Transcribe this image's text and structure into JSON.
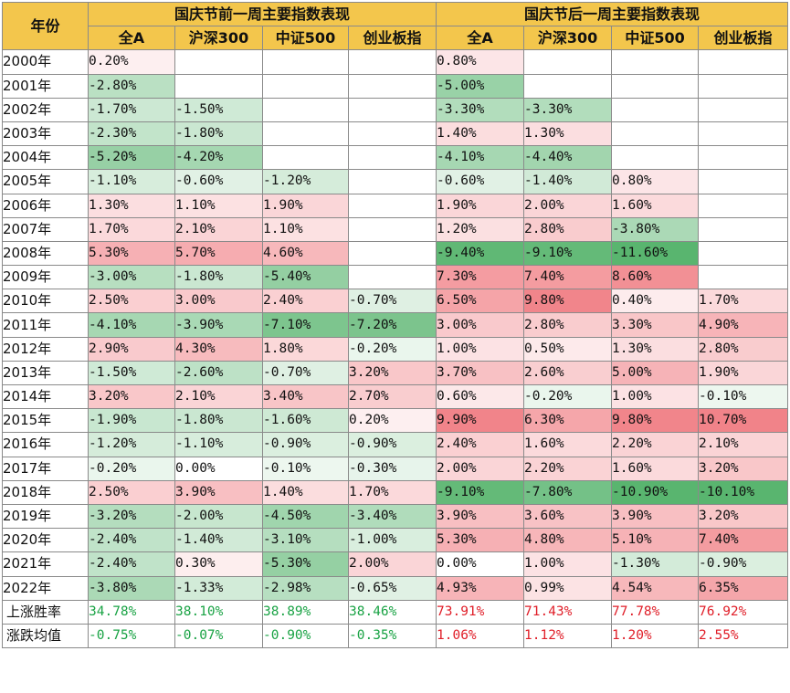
{
  "headers": {
    "year": "年份",
    "before_group": "国庆节前一周主要指数表现",
    "after_group": "国庆节后一周主要指数表现",
    "indices": [
      "全A",
      "沪深300",
      "中证500",
      "创业板指"
    ]
  },
  "colors": {
    "header_bg": "#f3c64c",
    "grid_border": "#8a8a8a",
    "positive_fill": "#f07a80",
    "negative_fill": "#4caf64",
    "summary_green_text": "#1aa345",
    "summary_red_text": "#e01e28"
  },
  "rows": [
    {
      "year": "2000年",
      "before": [
        "0.20%",
        "",
        "",
        ""
      ],
      "after": [
        "0.80%",
        "",
        "",
        ""
      ]
    },
    {
      "year": "2001年",
      "before": [
        "-2.80%",
        "",
        "",
        ""
      ],
      "after": [
        "-5.00%",
        "",
        "",
        ""
      ]
    },
    {
      "year": "2002年",
      "before": [
        "-1.70%",
        "-1.50%",
        "",
        ""
      ],
      "after": [
        "-3.30%",
        "-3.30%",
        "",
        ""
      ]
    },
    {
      "year": "2003年",
      "before": [
        "-2.30%",
        "-1.80%",
        "",
        ""
      ],
      "after": [
        "1.40%",
        "1.30%",
        "",
        ""
      ]
    },
    {
      "year": "2004年",
      "before": [
        "-5.20%",
        "-4.20%",
        "",
        ""
      ],
      "after": [
        "-4.10%",
        "-4.40%",
        "",
        ""
      ]
    },
    {
      "year": "2005年",
      "before": [
        "-1.10%",
        "-0.60%",
        "-1.20%",
        ""
      ],
      "after": [
        "-0.60%",
        "-1.40%",
        "0.80%",
        ""
      ]
    },
    {
      "year": "2006年",
      "before": [
        "1.30%",
        "1.10%",
        "1.90%",
        ""
      ],
      "after": [
        "1.90%",
        "2.00%",
        "1.60%",
        ""
      ]
    },
    {
      "year": "2007年",
      "before": [
        "1.70%",
        "2.10%",
        "1.10%",
        ""
      ],
      "after": [
        "1.20%",
        "2.80%",
        "-3.80%",
        ""
      ]
    },
    {
      "year": "2008年",
      "before": [
        "5.30%",
        "5.70%",
        "4.60%",
        ""
      ],
      "after": [
        "-9.40%",
        "-9.10%",
        "-11.60%",
        ""
      ]
    },
    {
      "year": "2009年",
      "before": [
        "-3.00%",
        "-1.80%",
        "-5.40%",
        ""
      ],
      "after": [
        "7.30%",
        "7.40%",
        "8.60%",
        ""
      ]
    },
    {
      "year": "2010年",
      "before": [
        "2.50%",
        "3.00%",
        "2.40%",
        "-0.70%"
      ],
      "after": [
        "6.50%",
        "9.80%",
        "0.40%",
        "1.70%"
      ]
    },
    {
      "year": "2011年",
      "before": [
        "-4.10%",
        "-3.90%",
        "-7.10%",
        "-7.20%"
      ],
      "after": [
        "3.00%",
        "2.80%",
        "3.30%",
        "4.90%"
      ]
    },
    {
      "year": "2012年",
      "before": [
        "2.90%",
        "4.30%",
        "1.80%",
        "-0.20%"
      ],
      "after": [
        "1.00%",
        "0.50%",
        "1.30%",
        "2.80%"
      ]
    },
    {
      "year": "2013年",
      "before": [
        "-1.50%",
        "-2.60%",
        "-0.70%",
        "3.20%"
      ],
      "after": [
        "3.70%",
        "2.60%",
        "5.00%",
        "1.90%"
      ]
    },
    {
      "year": "2014年",
      "before": [
        "3.20%",
        "2.10%",
        "3.40%",
        "2.70%"
      ],
      "after": [
        "0.60%",
        "-0.20%",
        "1.00%",
        "-0.10%"
      ]
    },
    {
      "year": "2015年",
      "before": [
        "-1.90%",
        "-1.80%",
        "-1.60%",
        "0.20%"
      ],
      "after": [
        "9.90%",
        "6.30%",
        "9.80%",
        "10.70%"
      ]
    },
    {
      "year": "2016年",
      "before": [
        "-1.20%",
        "-1.10%",
        "-0.90%",
        "-0.90%"
      ],
      "after": [
        "2.40%",
        "1.60%",
        "2.20%",
        "2.10%"
      ]
    },
    {
      "year": "2017年",
      "before": [
        "-0.20%",
        "0.00%",
        "-0.10%",
        "-0.30%"
      ],
      "after": [
        "2.00%",
        "2.20%",
        "1.60%",
        "3.20%"
      ]
    },
    {
      "year": "2018年",
      "before": [
        "2.50%",
        "3.90%",
        "1.40%",
        "1.70%"
      ],
      "after": [
        "-9.10%",
        "-7.80%",
        "-10.90%",
        "-10.10%"
      ]
    },
    {
      "year": "2019年",
      "before": [
        "-3.20%",
        "-2.00%",
        "-4.50%",
        "-3.40%"
      ],
      "after": [
        "3.90%",
        "3.60%",
        "3.90%",
        "3.20%"
      ]
    },
    {
      "year": "2020年",
      "before": [
        "-2.40%",
        "-1.40%",
        "-3.10%",
        "-1.00%"
      ],
      "after": [
        "5.30%",
        "4.80%",
        "5.10%",
        "7.40%"
      ]
    },
    {
      "year": "2021年",
      "before": [
        "-2.40%",
        "0.30%",
        "-5.30%",
        "2.00%"
      ],
      "after": [
        "0.00%",
        "1.00%",
        "-1.30%",
        "-0.90%"
      ]
    },
    {
      "year": "2022年",
      "before": [
        "-3.80%",
        "-1.33%",
        "-2.98%",
        "-0.65%"
      ],
      "after": [
        "4.93%",
        "0.99%",
        "4.54%",
        "6.35%"
      ]
    }
  ],
  "summary": [
    {
      "label": "上涨胜率",
      "before": [
        "34.78%",
        "38.10%",
        "38.89%",
        "38.46%"
      ],
      "after": [
        "73.91%",
        "71.43%",
        "77.78%",
        "76.92%"
      ]
    },
    {
      "label": "涨跌均值",
      "before": [
        "-0.75%",
        "-0.07%",
        "-0.90%",
        "-0.35%"
      ],
      "after": [
        "1.06%",
        "1.12%",
        "1.20%",
        "2.55%"
      ]
    }
  ]
}
